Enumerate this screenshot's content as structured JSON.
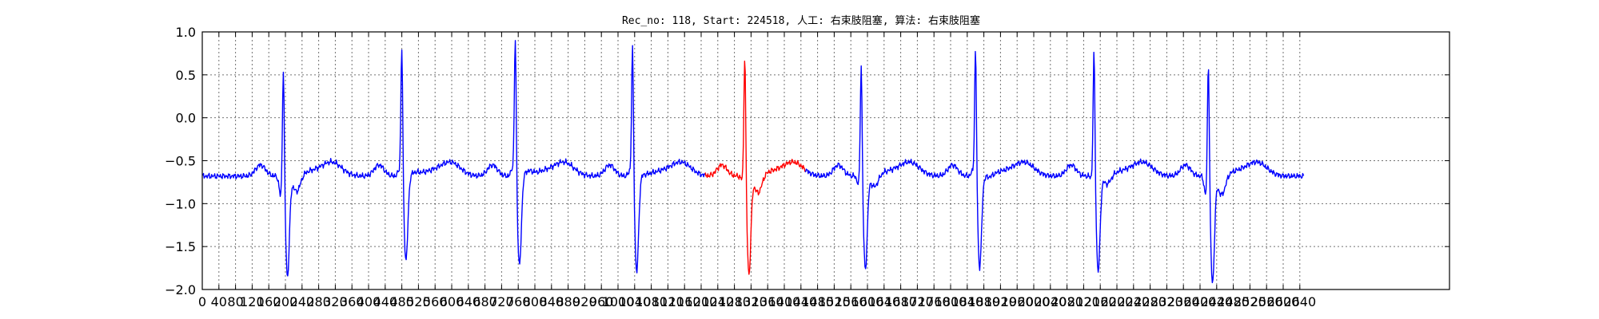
{
  "chart_data": {
    "type": "line",
    "title": "Rec_no: 118, Start: 224518, 人工: 右束肢阻塞, 算法: 右束肢阻塞",
    "xlabel": "",
    "ylabel": "",
    "xlim": [
      0,
      3000
    ],
    "ylim": [
      -2.0,
      1.0
    ],
    "grid": true,
    "x_ticks": [
      0,
      40,
      80,
      120,
      160,
      200,
      240,
      280,
      320,
      360,
      400,
      440,
      480,
      520,
      560,
      600,
      640,
      680,
      720,
      760,
      800,
      840,
      880,
      920,
      960,
      1000,
      1040,
      1080,
      1120,
      1160,
      1200,
      1240,
      1280,
      1320,
      1360,
      1400,
      1440,
      1480,
      1520,
      1560,
      1600,
      1640,
      1680,
      1720,
      1760,
      1800,
      1840,
      1880,
      1920,
      1960,
      2000,
      2040,
      2080,
      2120,
      2160,
      2200,
      2240,
      2280,
      2320,
      2360,
      2400,
      2440,
      2480,
      2520,
      2560,
      2600,
      2640
    ],
    "x_tick_labels": [
      "0",
      "40",
      "80",
      "120",
      "160",
      "200",
      "240",
      "280",
      "320",
      "360",
      "400",
      "440",
      "480",
      "520",
      "560",
      "600",
      "640",
      "680",
      "720",
      "760",
      "800",
      "840",
      "880",
      "920",
      "960",
      "1000",
      "1040",
      "1080",
      "1120",
      "1160",
      "1200",
      "1240",
      "1280",
      "1320",
      "1360",
      "1400",
      "1440",
      "1480",
      "1520",
      "1560",
      "1600",
      "1640",
      "1680",
      "1720",
      "1760",
      "1800",
      "1840",
      "1880",
      "1920",
      "1960",
      "2000",
      "2040",
      "2080",
      "2120",
      "2160",
      "2200",
      "2240",
      "2280",
      "2320",
      "2360",
      "2400",
      "2440",
      "2480",
      "2520",
      "2560",
      "2600",
      "2640"
    ],
    "y_ticks": [
      1.0,
      0.5,
      0.0,
      -0.5,
      -1.0,
      -1.5,
      -2.0
    ],
    "y_tick_labels": [
      "1.0",
      "0.5",
      "0.0",
      "−0.5",
      "−1.0",
      "−1.5",
      "−2.0"
    ],
    "series": [
      {
        "color": "#0000ff",
        "x_start": 0,
        "x_end": 1210
      },
      {
        "color": "#ff0000",
        "x_start": 1210,
        "x_end": 1450
      },
      {
        "color": "#0000ff",
        "x_start": 1450,
        "x_end": 2650
      }
    ],
    "beats": [
      {
        "r": 195,
        "pre": -0.92,
        "peak": 0.72,
        "trough": -1.85,
        "post": -0.93
      },
      {
        "r": 480,
        "pre": -0.62,
        "peak": 0.87,
        "trough": -1.67,
        "post": -0.65
      },
      {
        "r": 753,
        "pre": -0.58,
        "peak": 0.97,
        "trough": -1.73,
        "post": -0.63
      },
      {
        "r": 1035,
        "pre": -0.62,
        "peak": 0.88,
        "trough": -1.8,
        "post": -0.68
      },
      {
        "r": 1305,
        "pre": -0.72,
        "peak": 0.82,
        "trough": -1.82,
        "post": -0.95
      },
      {
        "r": 1585,
        "pre": -0.78,
        "peak": 0.72,
        "trough": -1.77,
        "post": -0.86
      },
      {
        "r": 1860,
        "pre": -0.62,
        "peak": 0.85,
        "trough": -1.75,
        "post": -0.72
      },
      {
        "r": 2145,
        "pre": -0.7,
        "peak": 0.84,
        "trough": -1.79,
        "post": -0.82
      },
      {
        "r": 2420,
        "pre": -0.9,
        "peak": 0.8,
        "trough": -1.93,
        "post": -0.98
      }
    ],
    "baseline": -0.68,
    "x_end_data": 2650
  }
}
